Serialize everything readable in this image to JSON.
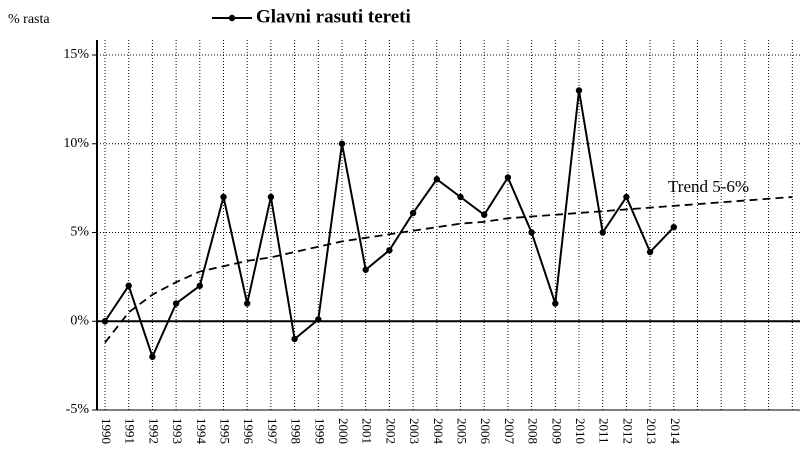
{
  "chart_data": {
    "type": "line",
    "ylabel": "% rasta",
    "categories": [
      "1990",
      "1991",
      "1992",
      "1993",
      "1994",
      "1995",
      "1996",
      "1997",
      "1998",
      "1999",
      "2000",
      "2001",
      "2002",
      "2003",
      "2004",
      "2005",
      "2006",
      "2007",
      "2008",
      "2009",
      "2010",
      "2011",
      "2012",
      "2013",
      "2014",
      null,
      null,
      null,
      null,
      null
    ],
    "series": [
      {
        "name": "Glavni rasuti tereti",
        "color": "#000000",
        "values": [
          0,
          2,
          -2,
          1,
          2,
          7,
          1,
          7,
          -1,
          0.1,
          10,
          2.9,
          4,
          6.1,
          8,
          7,
          6,
          8.1,
          5,
          1,
          13,
          5,
          7,
          3.9,
          5.3,
          null,
          null,
          null,
          null,
          null
        ]
      }
    ],
    "trend": {
      "label": "Trend 5-6%",
      "color": "#000000",
      "values": [
        -1.2,
        0.5,
        1.5,
        2.2,
        2.8,
        3.1,
        3.4,
        3.6,
        3.9,
        4.2,
        4.5,
        4.7,
        4.9,
        5.1,
        5.3,
        5.5,
        5.6,
        5.8,
        5.9,
        6.0,
        6.1,
        6.2,
        6.3,
        6.4,
        6.5,
        6.6,
        6.7,
        6.8,
        6.9,
        7.0
      ]
    },
    "ylim": [
      -5,
      15
    ],
    "yticks": [
      {
        "value": -5,
        "label": "-5%"
      },
      {
        "value": 0,
        "label": "0%"
      },
      {
        "value": 5,
        "label": "5%"
      },
      {
        "value": 10,
        "label": "10%"
      },
      {
        "value": 15,
        "label": "15%"
      }
    ],
    "grid": true,
    "legend": "top"
  }
}
